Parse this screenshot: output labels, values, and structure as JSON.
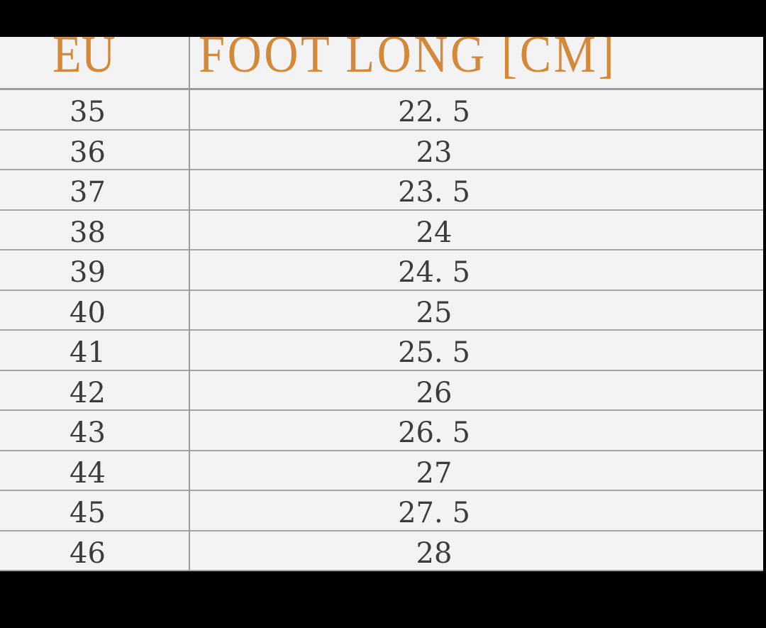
{
  "table": {
    "headers": [
      "EU",
      "FOOT LONG [CM]"
    ],
    "header_color": "#d4893a",
    "rows": [
      {
        "eu": "35",
        "cm": "22. 5"
      },
      {
        "eu": "36",
        "cm": "23"
      },
      {
        "eu": "37",
        "cm": "23. 5"
      },
      {
        "eu": "38",
        "cm": "24"
      },
      {
        "eu": "39",
        "cm": "24. 5"
      },
      {
        "eu": "40",
        "cm": "25"
      },
      {
        "eu": "41",
        "cm": "25. 5"
      },
      {
        "eu": "42",
        "cm": "26"
      },
      {
        "eu": "43",
        "cm": "26. 5"
      },
      {
        "eu": "44",
        "cm": "27"
      },
      {
        "eu": "45",
        "cm": "27. 5"
      },
      {
        "eu": "46",
        "cm": "28"
      }
    ]
  }
}
